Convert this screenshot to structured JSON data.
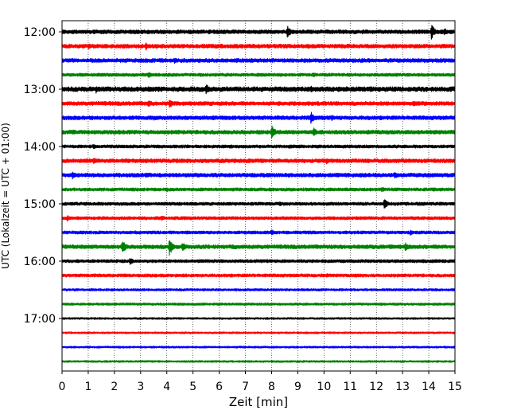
{
  "chart_data": {
    "type": "line",
    "title": "",
    "xlabel": "Zeit  [min]",
    "ylabel": "UTC (Lokalzeit = UTC + 01:00)",
    "xlim": [
      0,
      15
    ],
    "x_ticks": [
      "0",
      "1",
      "2",
      "3",
      "4",
      "5",
      "6",
      "7",
      "8",
      "9",
      "10",
      "11",
      "12",
      "13",
      "14",
      "15"
    ],
    "y_tick_labels": [
      "12:00",
      "13:00",
      "14:00",
      "15:00",
      "16:00",
      "17:00"
    ],
    "y_range_utc": [
      "12:00",
      "17:45"
    ],
    "grid": "vertical dotted lines at each minute",
    "legend": "none",
    "trace_interval_min": 15,
    "trace_color_cycle": [
      "#000000",
      "#ff0000",
      "#0000ff",
      "#008000"
    ],
    "traces": [
      {
        "start": "12:00",
        "amplitude": 2.5,
        "events": [
          {
            "t": 8.6,
            "a": 8
          },
          {
            "t": 14.1,
            "a": 10
          },
          {
            "t": 14.6,
            "a": 5
          }
        ]
      },
      {
        "start": "12:15",
        "amplitude": 2.5,
        "events": [
          {
            "t": 1.0,
            "a": 4
          },
          {
            "t": 3.2,
            "a": 5
          }
        ]
      },
      {
        "start": "12:30",
        "amplitude": 2.5,
        "events": [
          {
            "t": 3.0,
            "a": 4
          },
          {
            "t": 4.3,
            "a": 4
          }
        ]
      },
      {
        "start": "12:45",
        "amplitude": 2.0,
        "events": [
          {
            "t": 3.3,
            "a": 4
          },
          {
            "t": 9.6,
            "a": 3
          }
        ]
      },
      {
        "start": "13:00",
        "amplitude": 3.0,
        "events": [
          {
            "t": 1.3,
            "a": 5
          },
          {
            "t": 5.5,
            "a": 7
          },
          {
            "t": 9.5,
            "a": 5
          }
        ]
      },
      {
        "start": "13:15",
        "amplitude": 2.5,
        "events": [
          {
            "t": 3.3,
            "a": 5
          },
          {
            "t": 4.1,
            "a": 6
          },
          {
            "t": 13.4,
            "a": 4
          }
        ]
      },
      {
        "start": "13:30",
        "amplitude": 2.5,
        "events": [
          {
            "t": 3.5,
            "a": 3
          },
          {
            "t": 9.5,
            "a": 8
          },
          {
            "t": 10.3,
            "a": 4
          }
        ]
      },
      {
        "start": "13:45",
        "amplitude": 2.5,
        "events": [
          {
            "t": 0.4,
            "a": 4
          },
          {
            "t": 8.0,
            "a": 9
          },
          {
            "t": 9.6,
            "a": 6
          }
        ]
      },
      {
        "start": "14:00",
        "amplitude": 2.0,
        "events": [
          {
            "t": 1.2,
            "a": 4
          },
          {
            "t": 8.7,
            "a": 3
          }
        ]
      },
      {
        "start": "14:15",
        "amplitude": 2.5,
        "events": [
          {
            "t": 1.2,
            "a": 5
          },
          {
            "t": 10.1,
            "a": 4
          }
        ]
      },
      {
        "start": "14:30",
        "amplitude": 2.5,
        "events": [
          {
            "t": 0.4,
            "a": 5
          },
          {
            "t": 3.2,
            "a": 4
          },
          {
            "t": 12.7,
            "a": 5
          }
        ]
      },
      {
        "start": "14:45",
        "amplitude": 2.0,
        "events": [
          {
            "t": 4.0,
            "a": 3
          },
          {
            "t": 12.2,
            "a": 4
          }
        ]
      },
      {
        "start": "15:00",
        "amplitude": 2.0,
        "events": [
          {
            "t": 8.3,
            "a": 3
          },
          {
            "t": 12.3,
            "a": 7
          }
        ]
      },
      {
        "start": "15:15",
        "amplitude": 2.0,
        "events": [
          {
            "t": 0.2,
            "a": 4
          },
          {
            "t": 3.8,
            "a": 4
          }
        ]
      },
      {
        "start": "15:30",
        "amplitude": 2.0,
        "events": [
          {
            "t": 8.0,
            "a": 4
          },
          {
            "t": 13.3,
            "a": 4
          }
        ]
      },
      {
        "start": "15:45",
        "amplitude": 2.5,
        "events": [
          {
            "t": 2.3,
            "a": 9
          },
          {
            "t": 4.1,
            "a": 11
          },
          {
            "t": 4.6,
            "a": 6
          },
          {
            "t": 13.1,
            "a": 6
          }
        ]
      },
      {
        "start": "16:00",
        "amplitude": 2.0,
        "events": [
          {
            "t": 2.6,
            "a": 5
          }
        ]
      },
      {
        "start": "16:15",
        "amplitude": 2.0,
        "events": [
          {
            "t": 10.1,
            "a": 3
          },
          {
            "t": 11.2,
            "a": 3
          }
        ]
      },
      {
        "start": "16:30",
        "amplitude": 1.5,
        "events": []
      },
      {
        "start": "16:45",
        "amplitude": 1.5,
        "events": []
      },
      {
        "start": "17:00",
        "amplitude": 1.2,
        "events": []
      },
      {
        "start": "17:15",
        "amplitude": 1.2,
        "events": []
      },
      {
        "start": "17:30",
        "amplitude": 1.2,
        "events": []
      },
      {
        "start": "17:45",
        "amplitude": 1.2,
        "events": []
      }
    ]
  }
}
